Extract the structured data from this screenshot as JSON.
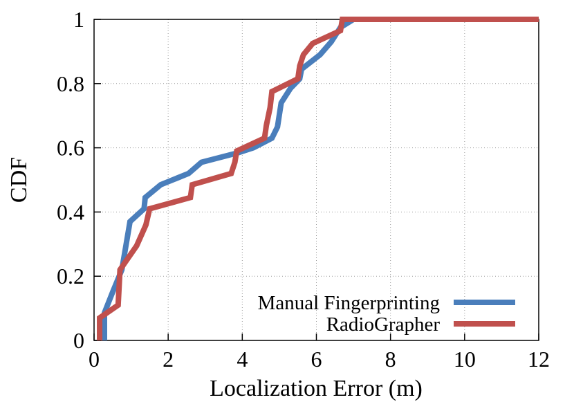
{
  "chart_data": {
    "type": "line",
    "xlabel": "Localization Error (m)",
    "ylabel": "CDF",
    "xlim": [
      0,
      12
    ],
    "ylim": [
      0,
      1
    ],
    "xticks": [
      0,
      2,
      4,
      6,
      8,
      10,
      12
    ],
    "yticks": [
      0,
      0.2,
      0.4,
      0.6,
      0.8,
      1
    ],
    "grid": true,
    "legend": "lower right",
    "series": [
      {
        "name": "Manual Fingerprinting",
        "color": "#4a7ebb",
        "x": [
          0.28,
          0.28,
          0.5,
          0.75,
          0.97,
          1.35,
          1.38,
          1.8,
          2.55,
          2.9,
          3.9,
          4.3,
          4.8,
          4.95,
          5.05,
          5.3,
          5.55,
          5.6,
          6.1,
          6.4,
          6.65,
          7.0,
          12
        ],
        "values": [
          0,
          0.086,
          0.15,
          0.22,
          0.37,
          0.41,
          0.445,
          0.485,
          0.52,
          0.555,
          0.585,
          0.6,
          0.63,
          0.665,
          0.74,
          0.785,
          0.815,
          0.845,
          0.89,
          0.93,
          0.975,
          1,
          1
        ]
      },
      {
        "name": "RadioGrapher",
        "color": "#c0504d",
        "x": [
          0.15,
          0.15,
          0.65,
          0.7,
          1.15,
          1.4,
          1.5,
          2.6,
          2.65,
          3.7,
          3.8,
          3.85,
          4.6,
          4.65,
          4.75,
          4.8,
          5.5,
          5.55,
          5.65,
          5.9,
          6.65,
          6.7,
          12
        ],
        "values": [
          0,
          0.07,
          0.11,
          0.22,
          0.295,
          0.36,
          0.41,
          0.445,
          0.485,
          0.52,
          0.555,
          0.59,
          0.63,
          0.67,
          0.725,
          0.775,
          0.815,
          0.855,
          0.89,
          0.925,
          0.965,
          1,
          1
        ]
      }
    ]
  }
}
